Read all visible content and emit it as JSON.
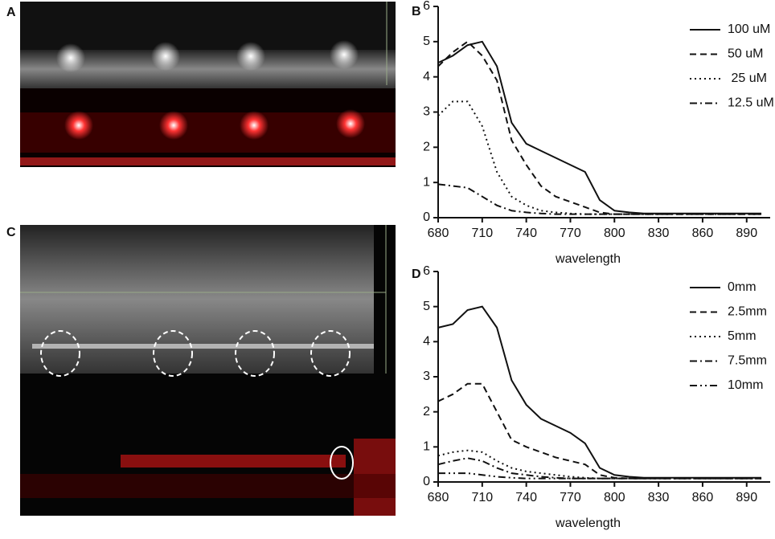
{
  "image_panels": [
    {
      "label": "A"
    },
    {
      "label": "C"
    }
  ],
  "chart_data": [
    {
      "type": "line",
      "label": "B",
      "xlabel": "wavelength",
      "x": [
        680,
        690,
        700,
        710,
        720,
        730,
        740,
        750,
        760,
        770,
        780,
        790,
        800,
        810,
        820,
        830,
        840,
        850,
        860,
        870,
        880,
        890,
        900
      ],
      "xlim": [
        680,
        906
      ],
      "xticks": [
        680,
        710,
        740,
        770,
        800,
        830,
        860,
        890
      ],
      "ylim": [
        0,
        6
      ],
      "yticks": [
        0,
        1,
        2,
        3,
        4,
        5,
        6
      ],
      "series": [
        {
          "name": "100 uM",
          "color": "#111111",
          "dash": "solid",
          "values": [
            4.4,
            4.6,
            4.9,
            5.0,
            4.3,
            2.7,
            2.1,
            1.9,
            1.7,
            1.5,
            1.3,
            0.5,
            0.2,
            0.15,
            0.12,
            0.12,
            0.12,
            0.12,
            0.12,
            0.12,
            0.12,
            0.12,
            0.12
          ]
        },
        {
          "name": "50 uM",
          "color": "#111111",
          "dash": "dashed",
          "values": [
            4.3,
            4.7,
            5.0,
            4.6,
            3.9,
            2.2,
            1.5,
            0.9,
            0.6,
            0.45,
            0.3,
            0.15,
            0.1,
            0.1,
            0.1,
            0.1,
            0.1,
            0.1,
            0.1,
            0.1,
            0.1,
            0.1,
            0.1
          ]
        },
        {
          "name": " 25 uM",
          "color": "#111111",
          "dash": "dotted",
          "values": [
            2.9,
            3.3,
            3.3,
            2.6,
            1.3,
            0.6,
            0.35,
            0.2,
            0.15,
            0.12,
            0.1,
            0.1,
            0.1,
            0.1,
            0.1,
            0.1,
            0.1,
            0.1,
            0.1,
            0.1,
            0.1,
            0.1,
            0.1
          ]
        },
        {
          "name": "12.5 uM",
          "color": "#111111",
          "dash": "dashdot",
          "values": [
            0.95,
            0.9,
            0.85,
            0.6,
            0.35,
            0.2,
            0.15,
            0.12,
            0.1,
            0.1,
            0.1,
            0.1,
            0.1,
            0.1,
            0.1,
            0.1,
            0.1,
            0.1,
            0.1,
            0.1,
            0.1,
            0.1,
            0.1
          ]
        }
      ]
    },
    {
      "type": "line",
      "label": "D",
      "xlabel": "wavelength",
      "x": [
        680,
        690,
        700,
        710,
        720,
        730,
        740,
        750,
        760,
        770,
        780,
        790,
        800,
        810,
        820,
        830,
        840,
        850,
        860,
        870,
        880,
        890,
        900
      ],
      "xlim": [
        680,
        906
      ],
      "xticks": [
        680,
        710,
        740,
        770,
        800,
        830,
        860,
        890
      ],
      "ylim": [
        0,
        6
      ],
      "yticks": [
        0,
        1,
        2,
        3,
        4,
        5,
        6
      ],
      "series": [
        {
          "name": "0mm",
          "color": "#111111",
          "dash": "solid",
          "values": [
            4.4,
            4.5,
            4.9,
            5.0,
            4.4,
            2.9,
            2.2,
            1.8,
            1.6,
            1.4,
            1.1,
            0.4,
            0.2,
            0.15,
            0.12,
            0.12,
            0.12,
            0.12,
            0.12,
            0.12,
            0.12,
            0.12,
            0.12
          ]
        },
        {
          "name": "2.5mm",
          "color": "#111111",
          "dash": "dashed",
          "values": [
            2.3,
            2.5,
            2.8,
            2.8,
            2.0,
            1.2,
            1.0,
            0.85,
            0.7,
            0.6,
            0.5,
            0.2,
            0.12,
            0.1,
            0.1,
            0.1,
            0.1,
            0.1,
            0.1,
            0.1,
            0.1,
            0.1,
            0.1
          ]
        },
        {
          "name": "5mm",
          "color": "#111111",
          "dash": "dotted",
          "values": [
            0.75,
            0.85,
            0.9,
            0.85,
            0.6,
            0.4,
            0.3,
            0.25,
            0.2,
            0.15,
            0.12,
            0.1,
            0.1,
            0.1,
            0.1,
            0.1,
            0.1,
            0.1,
            0.1,
            0.1,
            0.1,
            0.1,
            0.1
          ]
        },
        {
          "name": "7.5mm",
          "color": "#111111",
          "dash": "dashdot",
          "values": [
            0.5,
            0.6,
            0.68,
            0.6,
            0.4,
            0.25,
            0.2,
            0.15,
            0.12,
            0.1,
            0.1,
            0.1,
            0.1,
            0.1,
            0.1,
            0.1,
            0.1,
            0.1,
            0.1,
            0.1,
            0.1,
            0.1,
            0.1
          ]
        },
        {
          "name": "10mm",
          "color": "#111111",
          "dash": "dashdotdot",
          "values": [
            0.25,
            0.25,
            0.25,
            0.2,
            0.15,
            0.12,
            0.1,
            0.1,
            0.1,
            0.1,
            0.1,
            0.1,
            0.1,
            0.1,
            0.1,
            0.1,
            0.1,
            0.1,
            0.1,
            0.1,
            0.1,
            0.1,
            0.1
          ]
        }
      ]
    }
  ]
}
